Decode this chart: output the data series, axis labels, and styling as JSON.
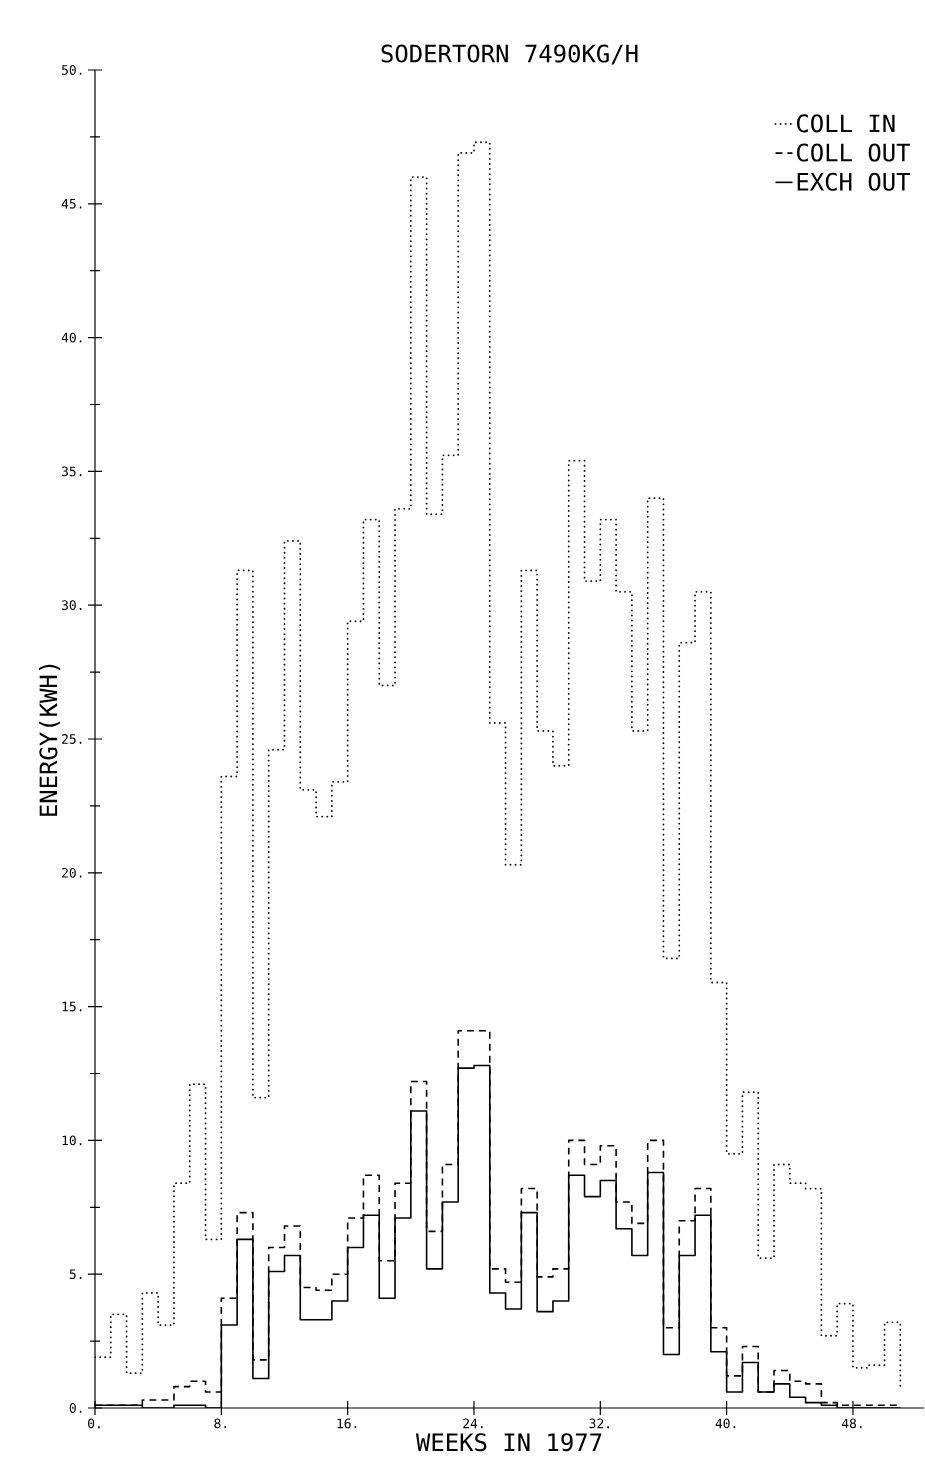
{
  "chart_data": {
    "type": "step",
    "title": "SODERTORN 7490KG/H",
    "xlabel": "WEEKS IN 1977",
    "ylabel": "ENERGY(KWH)",
    "x": [
      0,
      1,
      2,
      3,
      4,
      5,
      6,
      7,
      8,
      9,
      10,
      11,
      12,
      13,
      14,
      15,
      16,
      17,
      18,
      19,
      20,
      21,
      22,
      23,
      24,
      25,
      26,
      27,
      28,
      29,
      30,
      31,
      32,
      33,
      34,
      35,
      36,
      37,
      38,
      39,
      40,
      41,
      42,
      43,
      44,
      45,
      46,
      47,
      48,
      49,
      50,
      51
    ],
    "series": [
      {
        "name": "COLL IN",
        "color": "#000000",
        "line_style": "dotted",
        "values": [
          1.9,
          3.5,
          1.3,
          4.3,
          3.1,
          8.4,
          12.1,
          6.3,
          23.6,
          31.3,
          11.6,
          24.6,
          32.4,
          23.1,
          22.1,
          23.4,
          29.4,
          33.2,
          27.0,
          33.6,
          46.0,
          33.4,
          35.6,
          46.9,
          47.3,
          25.6,
          20.3,
          31.3,
          25.3,
          24.0,
          35.4,
          30.9,
          33.2,
          30.5,
          25.3,
          34.0,
          16.8,
          28.6,
          30.5,
          15.9,
          9.5,
          11.8,
          5.6,
          9.1,
          8.4,
          8.2,
          2.7,
          3.9,
          1.5,
          1.6,
          3.2,
          0.7
        ]
      },
      {
        "name": "COLL OUT",
        "color": "#000000",
        "line_style": "dashed",
        "values": [
          0.1,
          0.1,
          0.1,
          0.3,
          0.3,
          0.8,
          1.0,
          0.6,
          4.1,
          7.3,
          1.8,
          6.0,
          6.8,
          4.5,
          4.4,
          5.0,
          7.1,
          8.7,
          5.5,
          8.4,
          12.2,
          6.6,
          9.1,
          14.1,
          14.1,
          5.2,
          4.7,
          8.2,
          4.9,
          5.2,
          10.0,
          9.1,
          9.8,
          7.7,
          6.9,
          10.0,
          3.0,
          7.0,
          8.2,
          3.0,
          1.2,
          2.3,
          0.6,
          1.4,
          1.0,
          0.9,
          0.2,
          0.1,
          0.1,
          0.1,
          0.1,
          0.1
        ]
      },
      {
        "name": "EXCH OUT",
        "color": "#000000",
        "line_style": "solid",
        "values": [
          0.1,
          0.1,
          0.1,
          0,
          0,
          0.1,
          0.1,
          0,
          3.1,
          6.3,
          1.1,
          5.1,
          5.7,
          3.3,
          3.3,
          4.0,
          6.0,
          7.2,
          4.1,
          7.1,
          11.1,
          5.2,
          7.7,
          12.7,
          12.8,
          4.3,
          3.7,
          7.3,
          3.6,
          4.0,
          8.7,
          7.9,
          8.5,
          6.7,
          5.7,
          8.8,
          2.0,
          5.7,
          7.2,
          2.1,
          0.6,
          1.7,
          0.6,
          0.9,
          0.4,
          0.2,
          0.1,
          0,
          0,
          0,
          0,
          0
        ]
      }
    ],
    "xlim": [
      0,
      52.5
    ],
    "ylim": [
      0,
      50
    ],
    "xticks": [
      {
        "value": 0,
        "label": "0."
      },
      {
        "value": 8,
        "label": "8."
      },
      {
        "value": 16,
        "label": "16."
      },
      {
        "value": 24,
        "label": "24."
      },
      {
        "value": 32,
        "label": "32."
      },
      {
        "value": 40,
        "label": "40."
      },
      {
        "value": 48,
        "label": "48."
      }
    ],
    "yticks": [
      {
        "value": 0,
        "label": "0."
      },
      {
        "value": 5,
        "label": "5."
      },
      {
        "value": 10,
        "label": "10."
      },
      {
        "value": 15,
        "label": "15."
      },
      {
        "value": 20,
        "label": "20."
      },
      {
        "value": 25,
        "label": "25."
      },
      {
        "value": 30,
        "label": "30."
      },
      {
        "value": 35,
        "label": "35."
      },
      {
        "value": 40,
        "label": "40."
      },
      {
        "value": 45,
        "label": "45."
      },
      {
        "value": 50,
        "label": "50."
      }
    ],
    "legend": "top right",
    "grid": false
  }
}
